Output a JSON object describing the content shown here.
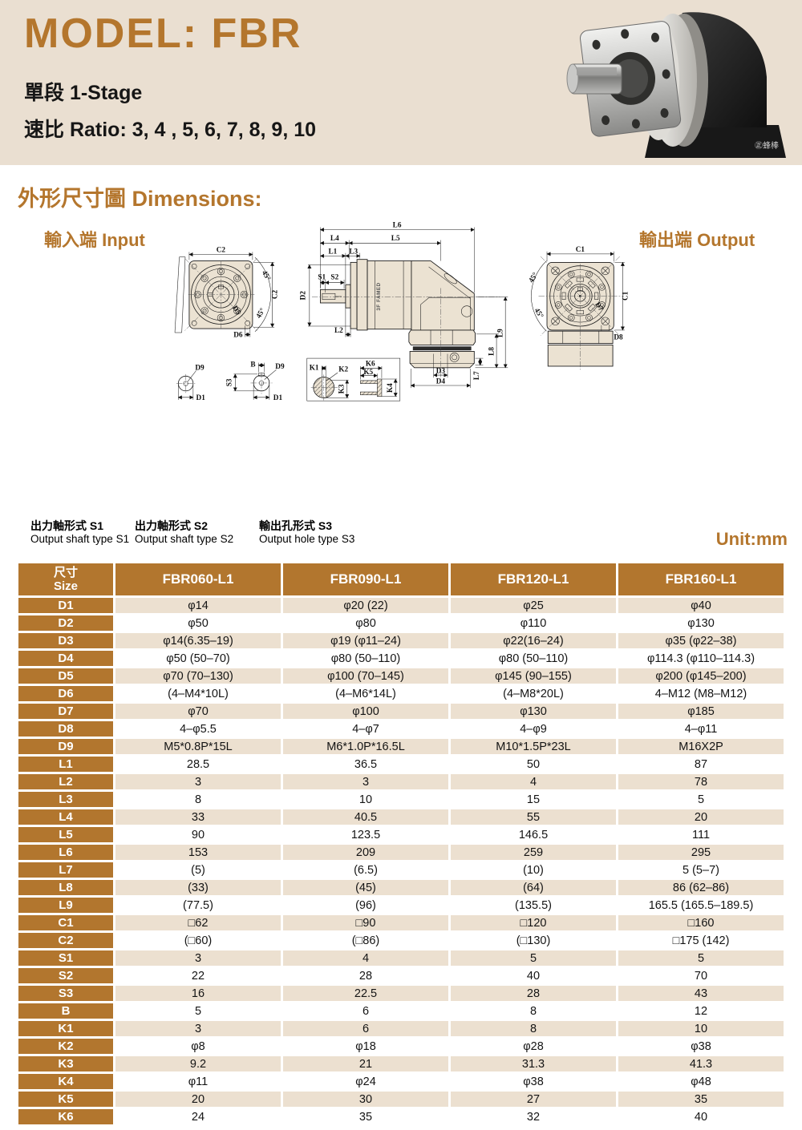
{
  "page": {
    "background": "#ffffff",
    "banner_bg": "#eadfd1",
    "accent": "#b4762d",
    "table_header_bg": "#b2762e",
    "row_beige": "#ece0d0"
  },
  "header": {
    "title": "MODEL: FBR",
    "stage": "單段 1-Stage",
    "ratio": "速比 Ratio: 3, 4 , 5, 6, 7, 8, 9, 10",
    "photo_logo": "㊣蜂棒"
  },
  "dimensions": {
    "section_title": "外形尺寸圖 Dimensions:",
    "input_label": "輸入端 Input",
    "output_label": "輸出端 Output",
    "unit": "Unit:mm",
    "captions": {
      "s1_zh": "出力軸形式 S1",
      "s1_en": "Output shaft type S1",
      "s2_zh": "出力軸形式 S2",
      "s2_en": "Output shaft type S2",
      "s3_zh": "輸出孔形式 S3",
      "s3_en": "Output hole type S3"
    }
  },
  "dw": {
    "c1": "C1",
    "c2": "C2",
    "d1": "D1",
    "d2": "D2",
    "d3": "D3",
    "d4": "D4",
    "d5": "D5",
    "d6": "D6",
    "d7": "D7",
    "d8": "D8",
    "d9": "D9",
    "l1": "L1",
    "l2": "L2",
    "l3": "L3",
    "l4": "L4",
    "l5": "L5",
    "l6": "L6",
    "l7": "L7",
    "l8": "L8",
    "l9": "L9",
    "s1": "S1",
    "s2": "S2",
    "s3": "S3",
    "b": "B",
    "k1": "K1",
    "k2": "K2",
    "k3": "K3",
    "k4": "K4",
    "k5": "K5",
    "k6": "K6",
    "deg45": "45°",
    "logo": "3F FAMED"
  },
  "table": {
    "size_zh": "尺寸",
    "size_en": "Size",
    "columns": [
      "FBR060-L1",
      "FBR090-L1",
      "FBR120-L1",
      "FBR160-L1"
    ],
    "rows": [
      {
        "label": "D1",
        "values": [
          "φ14",
          "φ20 (22)",
          "φ25",
          "φ40"
        ]
      },
      {
        "label": "D2",
        "values": [
          "φ50",
          "φ80",
          "φ110",
          "φ130"
        ]
      },
      {
        "label": "D3",
        "values": [
          "φ14(6.35–19)",
          "φ19 (φ11–24)",
          "φ22(16–24)",
          "φ35 (φ22–38)"
        ]
      },
      {
        "label": "D4",
        "values": [
          "φ50 (50–70)",
          "φ80 (50–110)",
          "φ80 (50–110)",
          "φ114.3 (φ110–114.3)"
        ]
      },
      {
        "label": "D5",
        "values": [
          "φ70 (70–130)",
          "φ100 (70–145)",
          "φ145 (90–155)",
          "φ200 (φ145–200)"
        ]
      },
      {
        "label": "D6",
        "values": [
          "(4–M4*10L)",
          "(4–M6*14L)",
          "(4–M8*20L)",
          "4–M12 (M8–M12)"
        ]
      },
      {
        "label": "D7",
        "values": [
          "φ70",
          "φ100",
          "φ130",
          "φ185"
        ]
      },
      {
        "label": "D8",
        "values": [
          "4–φ5.5",
          "4–φ7",
          "4–φ9",
          "4–φ11"
        ]
      },
      {
        "label": "D9",
        "values": [
          "M5*0.8P*15L",
          "M6*1.0P*16.5L",
          "M10*1.5P*23L",
          "M16X2P"
        ]
      },
      {
        "label": "L1",
        "values": [
          "28.5",
          "36.5",
          "50",
          "87"
        ]
      },
      {
        "label": "L2",
        "values": [
          "3",
          "3",
          "4",
          "78"
        ]
      },
      {
        "label": "L3",
        "values": [
          "8",
          "10",
          "15",
          "5"
        ]
      },
      {
        "label": "L4",
        "values": [
          "33",
          "40.5",
          "55",
          "20"
        ]
      },
      {
        "label": "L5",
        "values": [
          "90",
          "123.5",
          "146.5",
          "111"
        ]
      },
      {
        "label": "L6",
        "values": [
          "153",
          "209",
          "259",
          "295"
        ]
      },
      {
        "label": "L7",
        "values": [
          "(5)",
          "(6.5)",
          "(10)",
          "5 (5–7)"
        ]
      },
      {
        "label": "L8",
        "values": [
          "(33)",
          "(45)",
          "(64)",
          "86 (62–86)"
        ]
      },
      {
        "label": "L9",
        "values": [
          "(77.5)",
          "(96)",
          "(135.5)",
          "165.5 (165.5–189.5)"
        ]
      },
      {
        "label": "C1",
        "values": [
          "□62",
          "□90",
          "□120",
          "□160"
        ]
      },
      {
        "label": "C2",
        "values": [
          "(□60)",
          "(□86)",
          "(□130)",
          "□175 (142)"
        ]
      },
      {
        "label": "S1",
        "values": [
          "3",
          "4",
          "5",
          "5"
        ]
      },
      {
        "label": "S2",
        "values": [
          "22",
          "28",
          "40",
          "70"
        ]
      },
      {
        "label": "S3",
        "values": [
          "16",
          "22.5",
          "28",
          "43"
        ]
      },
      {
        "label": "B",
        "values": [
          "5",
          "6",
          "8",
          "12"
        ]
      },
      {
        "label": "K1",
        "values": [
          "3",
          "6",
          "8",
          "10"
        ]
      },
      {
        "label": "K2",
        "values": [
          "φ8",
          "φ18",
          "φ28",
          "φ38"
        ]
      },
      {
        "label": "K3",
        "values": [
          "9.2",
          "21",
          "31.3",
          "41.3"
        ]
      },
      {
        "label": "K4",
        "values": [
          "φ11",
          "φ24",
          "φ38",
          "φ48"
        ]
      },
      {
        "label": "K5",
        "values": [
          "20",
          "30",
          "27",
          "35"
        ]
      },
      {
        "label": "K6",
        "values": [
          "24",
          "35",
          "32",
          "40"
        ]
      }
    ]
  }
}
